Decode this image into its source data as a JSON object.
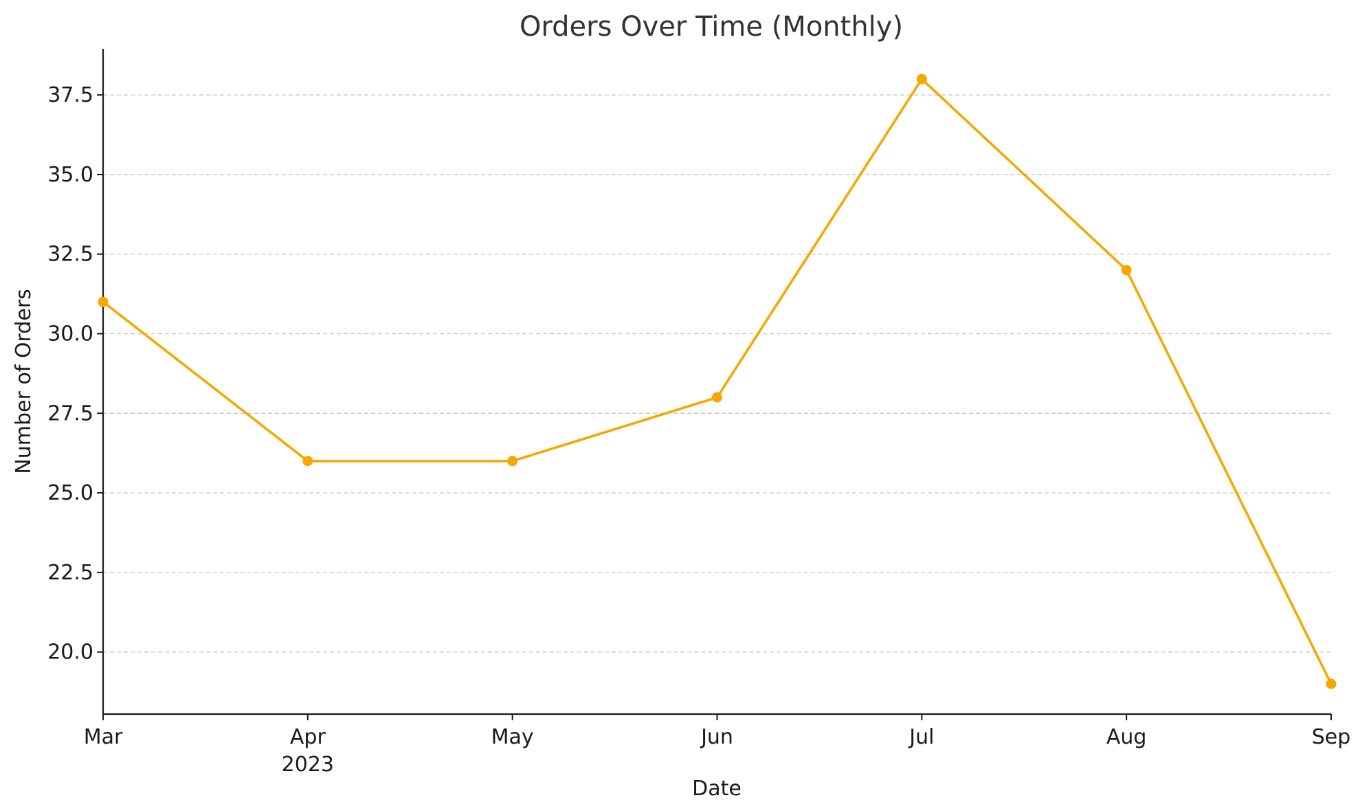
{
  "chart_data": {
    "type": "line",
    "title": "Orders Over Time (Monthly)",
    "xlabel": "Date",
    "ylabel": "Number of Orders",
    "x": [
      "2023-03",
      "2023-04",
      "2023-05",
      "2023-06",
      "2023-07",
      "2023-08",
      "2023-09"
    ],
    "x_tick_labels": [
      "Mar",
      "Apr",
      "May",
      "Jun",
      "Jul",
      "Aug",
      "Sep"
    ],
    "x_tick_sublabel": {
      "index": 1,
      "text": "2023"
    },
    "series": [
      {
        "values": [
          31,
          26,
          26,
          28,
          38,
          32,
          19
        ],
        "color": "#F5A800",
        "marker": "circle"
      }
    ],
    "y_ticks": [
      20.0,
      22.5,
      25.0,
      27.5,
      30.0,
      32.5,
      35.0,
      37.5
    ],
    "y_tick_labels": [
      "20.0",
      "22.5",
      "25.0",
      "27.5",
      "30.0",
      "32.5",
      "35.0",
      "37.5"
    ],
    "ylim": [
      18.05,
      38.95
    ],
    "grid": {
      "y": true,
      "x": false,
      "style": "dashed"
    },
    "legend": false
  }
}
